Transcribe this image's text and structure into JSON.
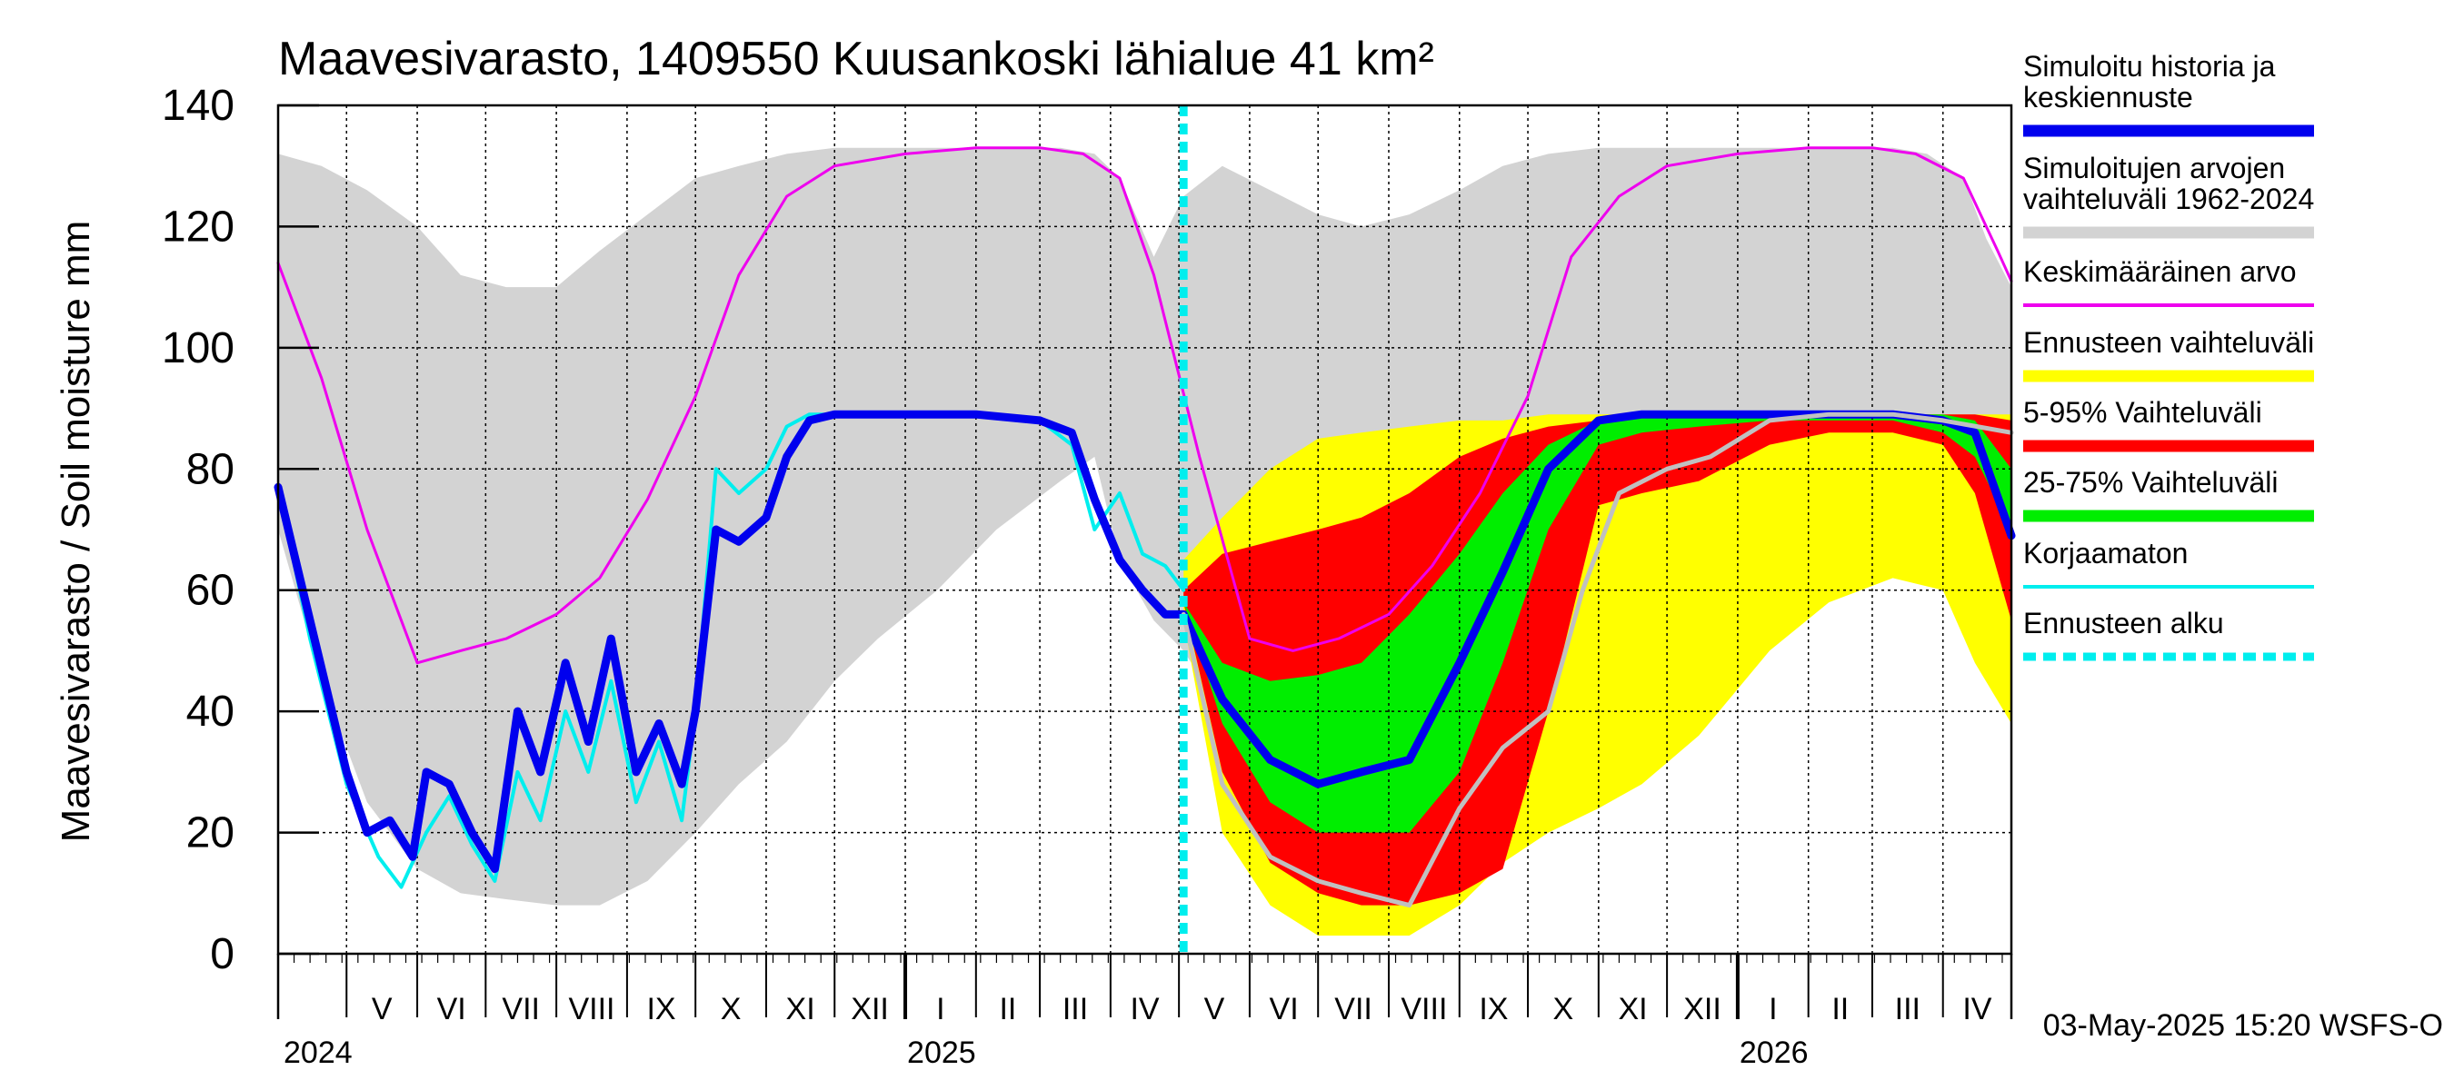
{
  "chart_data": {
    "type": "area",
    "title": "Maavesivarasto, 1409550 Kuusankoski lähialue 41 km²",
    "ylabel": "Maavesivarasto / Soil moisture   mm",
    "xlabel": "",
    "ylim": [
      0,
      140
    ],
    "yticks": [
      0,
      20,
      40,
      60,
      80,
      100,
      120,
      140
    ],
    "grid": true,
    "legend_position": "right",
    "timestamp": "03-May-2025 15:20 WSFS-O",
    "x_start": "2024-04-01",
    "x_end": "2026-05-01",
    "forecast_start": "2025-05-03",
    "month_labels": [
      "V",
      "VI",
      "VII",
      "VIII",
      "IX",
      "X",
      "XI",
      "XII",
      "I",
      "II",
      "III",
      "IV",
      "V",
      "VI",
      "VII",
      "VIII",
      "IX",
      "X",
      "XI",
      "XII",
      "I",
      "II",
      "III",
      "IV"
    ],
    "month_label_dates": [
      "2024-05-01",
      "2024-06-01",
      "2024-07-01",
      "2024-08-01",
      "2024-09-01",
      "2024-10-01",
      "2024-11-01",
      "2024-12-01",
      "2025-01-01",
      "2025-02-01",
      "2025-03-01",
      "2025-04-01",
      "2025-05-01",
      "2025-06-01",
      "2025-07-01",
      "2025-08-01",
      "2025-09-01",
      "2025-10-01",
      "2025-11-01",
      "2025-12-01",
      "2026-01-01",
      "2026-02-01",
      "2026-03-01",
      "2026-04-01"
    ],
    "year_labels": [
      {
        "date": "2024-04-01",
        "label": "2024"
      },
      {
        "date": "2025-01-01",
        "label": "2025"
      },
      {
        "date": "2026-01-01",
        "label": "2026"
      }
    ],
    "legend": [
      {
        "label": "Simuloitu historia ja keskiennuste",
        "color": "#0000ee",
        "style": "thick"
      },
      {
        "label": "Simuloitujen arvojen vaihteluväli 1962-2024",
        "color": "#d3d3d3",
        "style": "thick"
      },
      {
        "label": "Keskimääräinen arvo",
        "color": "#ee00ee",
        "style": "thin"
      },
      {
        "label": "Ennusteen vaihteluväli",
        "color": "#ffff00",
        "style": "thick"
      },
      {
        "label": "5-95% Vaihteluväli",
        "color": "#ff0000",
        "style": "thick"
      },
      {
        "label": "25-75% Vaihteluväli",
        "color": "#00ee00",
        "style": "thick"
      },
      {
        "label": "Korjaamaton",
        "color": "#00eeee",
        "style": "thin"
      },
      {
        "label": "Ennusteen alku",
        "color": "#00eeee",
        "style": "dashed"
      }
    ],
    "series": [
      {
        "key": "hist_range",
        "kind": "band",
        "color": "#d3d3d3",
        "x": [
          "2024-04-01",
          "2024-04-20",
          "2024-05-10",
          "2024-06-01",
          "2024-06-20",
          "2024-07-10",
          "2024-08-01",
          "2024-08-20",
          "2024-09-10",
          "2024-10-01",
          "2024-10-20",
          "2024-11-10",
          "2024-12-01",
          "2024-12-20",
          "2025-01-15",
          "2025-02-10",
          "2025-03-10",
          "2025-03-25",
          "2025-04-05",
          "2025-04-20",
          "2025-05-03",
          "2025-05-20",
          "2025-06-10",
          "2025-07-01",
          "2025-07-20",
          "2025-08-10",
          "2025-09-01",
          "2025-09-20",
          "2025-10-10",
          "2025-11-01",
          "2025-11-20",
          "2025-12-15",
          "2026-01-15",
          "2026-02-10",
          "2026-03-10",
          "2026-03-25",
          "2026-04-10",
          "2026-04-20",
          "2026-05-01"
        ],
        "low": [
          70,
          45,
          25,
          14,
          10,
          9,
          8,
          8,
          12,
          20,
          28,
          35,
          45,
          52,
          60,
          70,
          78,
          82,
          65,
          55,
          50,
          40,
          25,
          18,
          14,
          12,
          14,
          20,
          28,
          35,
          42,
          50,
          60,
          70,
          80,
          85,
          78,
          70,
          65
        ],
        "high": [
          132,
          130,
          126,
          120,
          112,
          110,
          110,
          116,
          122,
          128,
          130,
          132,
          133,
          133,
          133,
          133,
          133,
          132,
          128,
          115,
          125,
          130,
          126,
          122,
          120,
          122,
          126,
          130,
          132,
          133,
          133,
          133,
          133,
          133,
          133,
          132,
          128,
          118,
          110
        ]
      },
      {
        "key": "forecast_range",
        "kind": "band",
        "color": "#ffff00",
        "x": [
          "2025-05-03",
          "2025-05-20",
          "2025-06-10",
          "2025-07-01",
          "2025-07-20",
          "2025-08-10",
          "2025-09-01",
          "2025-09-20",
          "2025-10-10",
          "2025-11-01",
          "2025-11-20",
          "2025-12-15",
          "2026-01-15",
          "2026-02-10",
          "2026-03-10",
          "2026-04-01",
          "2026-04-15",
          "2026-05-01"
        ],
        "low": [
          55,
          20,
          8,
          3,
          3,
          3,
          8,
          15,
          20,
          24,
          28,
          36,
          50,
          58,
          62,
          60,
          48,
          38
        ],
        "high": [
          65,
          72,
          80,
          85,
          86,
          87,
          88,
          88,
          89,
          89,
          89,
          89,
          89,
          89,
          89,
          89,
          89,
          89
        ]
      },
      {
        "key": "p5_95",
        "kind": "band",
        "color": "#ff0000",
        "x": [
          "2025-05-03",
          "2025-05-20",
          "2025-06-10",
          "2025-07-01",
          "2025-07-20",
          "2025-08-10",
          "2025-09-01",
          "2025-09-20",
          "2025-10-10",
          "2025-11-01",
          "2025-11-20",
          "2025-12-15",
          "2026-01-15",
          "2026-02-10",
          "2026-03-10",
          "2026-04-01",
          "2026-04-15",
          "2026-05-01"
        ],
        "low": [
          58,
          30,
          15,
          10,
          8,
          8,
          10,
          14,
          40,
          74,
          76,
          78,
          84,
          86,
          86,
          84,
          76,
          55
        ],
        "high": [
          60,
          66,
          68,
          70,
          72,
          76,
          82,
          85,
          87,
          88,
          89,
          89,
          89,
          89,
          89,
          89,
          89,
          88
        ]
      },
      {
        "key": "p25_75",
        "kind": "band",
        "color": "#00ee00",
        "x": [
          "2025-05-03",
          "2025-05-20",
          "2025-06-10",
          "2025-07-01",
          "2025-07-20",
          "2025-08-10",
          "2025-09-01",
          "2025-09-20",
          "2025-10-10",
          "2025-11-01",
          "2025-11-20",
          "2025-12-15",
          "2026-01-15",
          "2026-02-10",
          "2026-03-10",
          "2026-04-01",
          "2026-04-15",
          "2026-05-01"
        ],
        "low": [
          58,
          38,
          25,
          20,
          20,
          20,
          30,
          48,
          70,
          84,
          86,
          87,
          88,
          88,
          88,
          86,
          82,
          70
        ],
        "high": [
          58,
          48,
          45,
          46,
          48,
          56,
          66,
          76,
          84,
          88,
          89,
          89,
          89,
          89,
          89,
          89,
          88,
          80
        ]
      },
      {
        "key": "mean",
        "kind": "line",
        "color": "#ee00ee",
        "width": 3,
        "x": [
          "2024-04-01",
          "2024-04-20",
          "2024-05-10",
          "2024-06-01",
          "2024-06-20",
          "2024-07-10",
          "2024-08-01",
          "2024-08-20",
          "2024-09-10",
          "2024-10-01",
          "2024-10-20",
          "2024-11-10",
          "2024-12-01",
          "2025-01-01",
          "2025-02-01",
          "2025-03-01",
          "2025-03-20",
          "2025-04-05",
          "2025-04-20",
          "2025-05-10",
          "2025-06-01",
          "2025-06-20",
          "2025-07-10",
          "2025-08-01",
          "2025-08-20",
          "2025-09-10",
          "2025-10-01",
          "2025-10-20",
          "2025-11-10",
          "2025-12-01",
          "2026-01-01",
          "2026-02-01",
          "2026-03-01",
          "2026-03-20",
          "2026-04-10",
          "2026-04-25",
          "2026-05-01"
        ],
        "y": [
          114,
          95,
          70,
          48,
          50,
          52,
          56,
          62,
          75,
          92,
          112,
          125,
          130,
          132,
          133,
          133,
          132,
          128,
          112,
          82,
          52,
          50,
          52,
          56,
          64,
          76,
          92,
          115,
          125,
          130,
          132,
          133,
          133,
          132,
          128,
          116,
          111
        ]
      },
      {
        "key": "uncorrected",
        "kind": "line",
        "color": "#00eeee",
        "width": 4,
        "x": [
          "2024-04-01",
          "2024-04-15",
          "2024-05-01",
          "2024-05-15",
          "2024-05-25",
          "2024-06-05",
          "2024-06-15",
          "2024-06-25",
          "2024-07-05",
          "2024-07-15",
          "2024-07-25",
          "2024-08-05",
          "2024-08-15",
          "2024-08-25",
          "2024-09-05",
          "2024-09-15",
          "2024-09-25",
          "2024-10-01",
          "2024-10-10",
          "2024-10-20",
          "2024-11-01",
          "2024-11-10",
          "2024-11-20",
          "2024-12-01",
          "2025-01-01",
          "2025-02-01",
          "2025-03-01",
          "2025-03-15",
          "2025-03-25",
          "2025-04-05",
          "2025-04-15",
          "2025-04-25",
          "2025-05-03"
        ],
        "y": [
          77,
          52,
          28,
          16,
          11,
          20,
          26,
          18,
          12,
          30,
          22,
          40,
          30,
          45,
          25,
          35,
          22,
          40,
          80,
          76,
          80,
          87,
          89,
          89,
          89,
          89,
          88,
          84,
          70,
          76,
          66,
          64,
          60
        ]
      },
      {
        "key": "sim_history",
        "kind": "line",
        "color": "#0000ee",
        "width": 9,
        "x": [
          "2024-04-01",
          "2024-04-15",
          "2024-05-01",
          "2024-05-10",
          "2024-05-20",
          "2024-05-30",
          "2024-06-05",
          "2024-06-15",
          "2024-06-25",
          "2024-07-05",
          "2024-07-15",
          "2024-07-25",
          "2024-08-05",
          "2024-08-15",
          "2024-08-25",
          "2024-09-05",
          "2024-09-15",
          "2024-09-25",
          "2024-10-01",
          "2024-10-10",
          "2024-10-20",
          "2024-11-01",
          "2024-11-10",
          "2024-11-20",
          "2024-12-01",
          "2025-01-01",
          "2025-02-01",
          "2025-03-01",
          "2025-03-15",
          "2025-03-25",
          "2025-04-05",
          "2025-04-15",
          "2025-04-25",
          "2025-05-03"
        ],
        "y": [
          77,
          55,
          30,
          20,
          22,
          16,
          30,
          28,
          20,
          14,
          40,
          30,
          48,
          35,
          52,
          30,
          38,
          28,
          40,
          70,
          68,
          72,
          82,
          88,
          89,
          89,
          89,
          88,
          86,
          75,
          65,
          60,
          56,
          56
        ]
      },
      {
        "key": "median_forecast",
        "kind": "line",
        "color": "#0000ee",
        "width": 9,
        "x": [
          "2025-05-03",
          "2025-05-20",
          "2025-06-10",
          "2025-07-01",
          "2025-07-20",
          "2025-08-10",
          "2025-09-01",
          "2025-09-20",
          "2025-10-10",
          "2025-11-01",
          "2025-11-20",
          "2025-12-15",
          "2026-01-15",
          "2026-02-10",
          "2026-03-10",
          "2026-04-01",
          "2026-04-15",
          "2026-05-01"
        ],
        "y": [
          56,
          42,
          32,
          28,
          30,
          32,
          48,
          63,
          80,
          88,
          89,
          89,
          89,
          89,
          89,
          88,
          86,
          69
        ]
      },
      {
        "key": "example_scenario",
        "kind": "line",
        "color": "#c0c0c0",
        "width": 5,
        "x": [
          "2025-05-03",
          "2025-05-20",
          "2025-06-10",
          "2025-07-01",
          "2025-07-20",
          "2025-08-10",
          "2025-09-01",
          "2025-09-20",
          "2025-10-10",
          "2025-10-25",
          "2025-11-10",
          "2025-12-01",
          "2025-12-20",
          "2026-01-15",
          "2026-02-10",
          "2026-03-10",
          "2026-04-01",
          "2026-05-01"
        ],
        "y": [
          56,
          28,
          16,
          12,
          10,
          8,
          24,
          34,
          40,
          60,
          76,
          80,
          82,
          88,
          89,
          89,
          88,
          86
        ]
      }
    ]
  }
}
